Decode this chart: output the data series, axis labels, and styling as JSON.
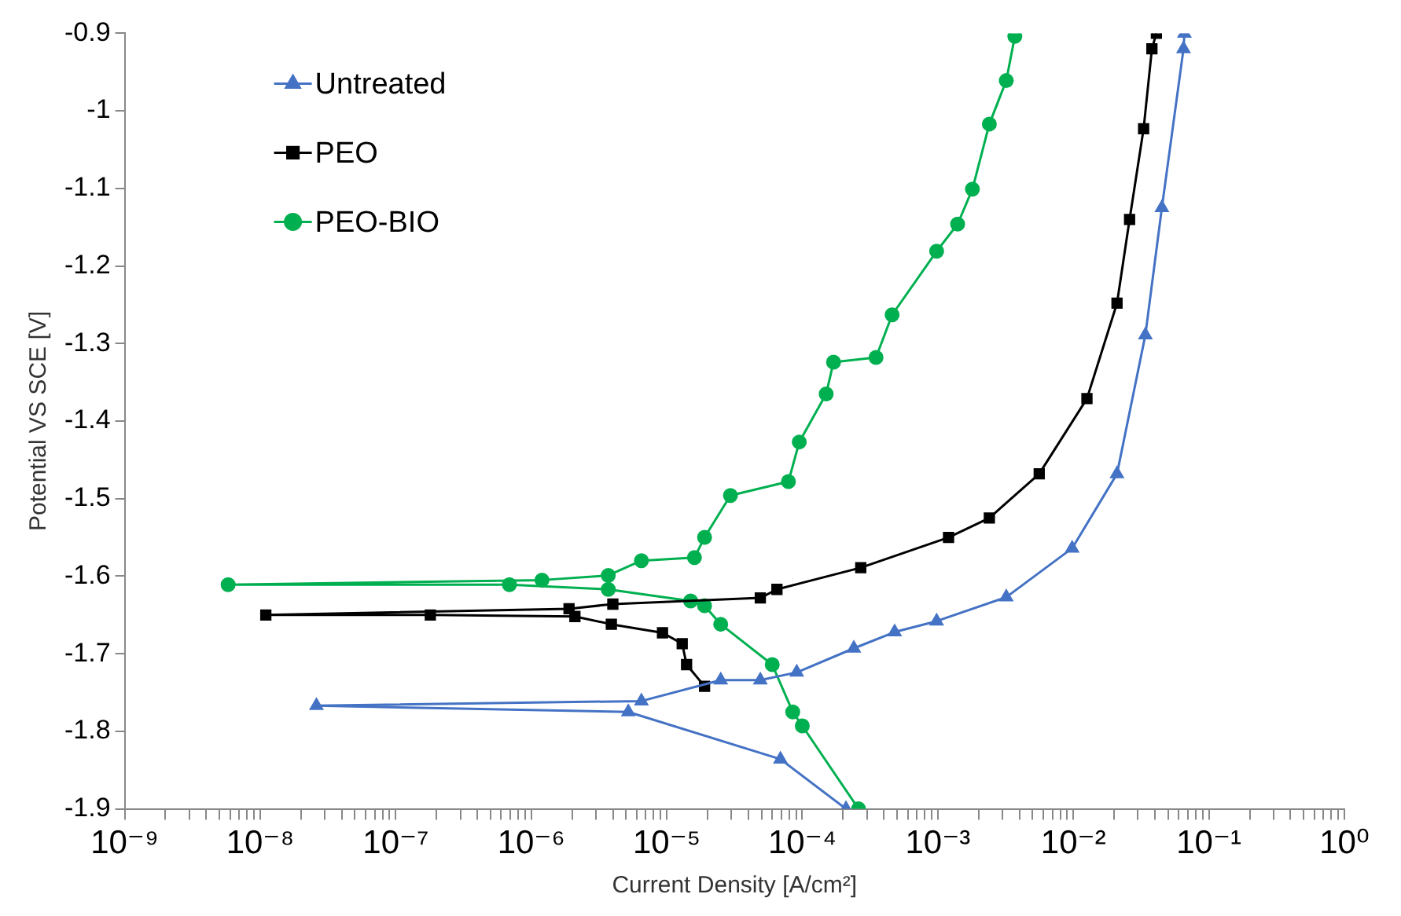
{
  "chart_data": {
    "type": "line",
    "xlabel": "Current Density [A/cm²]",
    "ylabel": "Potential VS SCE [V]",
    "log": "x",
    "grid": false,
    "legend": "top left",
    "line_style": "solid",
    "xlim": [
      1e-09,
      1
    ],
    "xticks": [
      {
        "value": 1e-09,
        "label": "10⁻⁹"
      },
      {
        "value": 2e-09,
        "label": null
      },
      {
        "value": 3e-09,
        "label": null
      },
      {
        "value": 4e-09,
        "label": null
      },
      {
        "value": 5e-09,
        "label": null
      },
      {
        "value": 6e-09,
        "label": null
      },
      {
        "value": 7e-09,
        "label": null
      },
      {
        "value": 8e-09,
        "label": null
      },
      {
        "value": 9e-09,
        "label": null
      },
      {
        "value": 1e-08,
        "label": "10⁻⁸"
      },
      {
        "value": 2e-08,
        "label": null
      },
      {
        "value": 3e-08,
        "label": null
      },
      {
        "value": 4e-08,
        "label": null
      },
      {
        "value": 5e-08,
        "label": null
      },
      {
        "value": 6e-08,
        "label": null
      },
      {
        "value": 7e-08,
        "label": null
      },
      {
        "value": 8e-08,
        "label": null
      },
      {
        "value": 9e-08,
        "label": null
      },
      {
        "value": 1e-07,
        "label": "10⁻⁷"
      },
      {
        "value": 2e-07,
        "label": null
      },
      {
        "value": 3e-07,
        "label": null
      },
      {
        "value": 4e-07,
        "label": null
      },
      {
        "value": 5e-07,
        "label": null
      },
      {
        "value": 6e-07,
        "label": null
      },
      {
        "value": 7e-07,
        "label": null
      },
      {
        "value": 8e-07,
        "label": null
      },
      {
        "value": 9e-07,
        "label": null
      },
      {
        "value": 1e-06,
        "label": "10⁻⁶"
      },
      {
        "value": 2e-06,
        "label": null
      },
      {
        "value": 3e-06,
        "label": null
      },
      {
        "value": 4e-06,
        "label": null
      },
      {
        "value": 5e-06,
        "label": null
      },
      {
        "value": 6e-06,
        "label": null
      },
      {
        "value": 7e-06,
        "label": null
      },
      {
        "value": 8e-06,
        "label": null
      },
      {
        "value": 9e-06,
        "label": null
      },
      {
        "value": 1e-05,
        "label": "10⁻⁵"
      },
      {
        "value": 2e-05,
        "label": null
      },
      {
        "value": 3e-05,
        "label": null
      },
      {
        "value": 4e-05,
        "label": null
      },
      {
        "value": 5e-05,
        "label": null
      },
      {
        "value": 6e-05,
        "label": null
      },
      {
        "value": 7e-05,
        "label": null
      },
      {
        "value": 8e-05,
        "label": null
      },
      {
        "value": 9e-05,
        "label": null
      },
      {
        "value": 0.0001,
        "label": "10⁻⁴"
      },
      {
        "value": 0.0002,
        "label": null
      },
      {
        "value": 0.0003,
        "label": null
      },
      {
        "value": 0.0004,
        "label": null
      },
      {
        "value": 0.0005,
        "label": null
      },
      {
        "value": 0.0006,
        "label": null
      },
      {
        "value": 0.0007,
        "label": null
      },
      {
        "value": 0.0008,
        "label": null
      },
      {
        "value": 0.0009,
        "label": null
      },
      {
        "value": 0.001,
        "label": "10⁻³"
      },
      {
        "value": 0.002,
        "label": null
      },
      {
        "value": 0.003,
        "label": null
      },
      {
        "value": 0.004,
        "label": null
      },
      {
        "value": 0.005,
        "label": null
      },
      {
        "value": 0.006,
        "label": null
      },
      {
        "value": 0.007,
        "label": null
      },
      {
        "value": 0.008,
        "label": null
      },
      {
        "value": 0.009,
        "label": null
      },
      {
        "value": 0.01,
        "label": "10⁻²"
      },
      {
        "value": 0.02,
        "label": null
      },
      {
        "value": 0.03,
        "label": null
      },
      {
        "value": 0.04,
        "label": null
      },
      {
        "value": 0.05,
        "label": null
      },
      {
        "value": 0.06,
        "label": null
      },
      {
        "value": 0.07,
        "label": null
      },
      {
        "value": 0.08,
        "label": null
      },
      {
        "value": 0.09,
        "label": null
      },
      {
        "value": 0.1,
        "label": "10⁻¹"
      },
      {
        "value": 0.2,
        "label": null
      },
      {
        "value": 0.3,
        "label": null
      },
      {
        "value": 0.4,
        "label": null
      },
      {
        "value": 0.5,
        "label": null
      },
      {
        "value": 0.6,
        "label": null
      },
      {
        "value": 0.7,
        "label": null
      },
      {
        "value": 0.8,
        "label": null
      },
      {
        "value": 0.9,
        "label": null
      },
      {
        "value": 1,
        "label": "10⁰"
      }
    ],
    "ylim": [
      -1.9,
      -0.9
    ],
    "yticks": [
      -1.9,
      -1.8,
      -1.7,
      -1.6,
      -1.5,
      -1.4,
      -1.3,
      -1.2,
      -1.1,
      -1,
      -0.9
    ],
    "series": [
      {
        "name": "Untreated",
        "color": "#4472c4",
        "marker": "triangle",
        "x": [
          0.00021,
          6.9e-05,
          5.2e-06,
          2.6e-08,
          6.5e-06,
          2.5e-05,
          4.9e-05,
          9.1e-05,
          0.00024,
          0.00048,
          0.00098,
          0.0032,
          0.0098,
          0.021,
          0.034,
          0.045,
          0.065,
          0.066
        ],
        "values": [
          -1.9,
          -1.836,
          -1.775,
          -1.767,
          -1.761,
          -1.734,
          -1.734,
          -1.724,
          -1.693,
          -1.672,
          -1.658,
          -1.627,
          -1.564,
          -1.468,
          -1.289,
          -1.125,
          -0.92,
          -0.9
        ]
      },
      {
        "name": "PEO",
        "color": "#000000",
        "marker": "square",
        "x": [
          1.9e-05,
          1.4e-05,
          1.3e-05,
          9.3e-06,
          3.9e-06,
          2.1e-06,
          1.8e-07,
          1.1e-08,
          1.9e-06,
          4e-06,
          4.9e-05,
          6.5e-05,
          0.00027,
          0.0012,
          0.0024,
          0.0056,
          0.0126,
          0.021,
          0.026,
          0.033,
          0.038,
          0.041
        ],
        "values": [
          -1.742,
          -1.714,
          -1.687,
          -1.673,
          -1.662,
          -1.652,
          -1.65,
          -1.65,
          -1.642,
          -1.636,
          -1.628,
          -1.617,
          -1.589,
          -1.55,
          -1.525,
          -1.468,
          -1.371,
          -1.248,
          -1.14,
          -1.023,
          -0.92,
          -0.9
        ]
      },
      {
        "name": "PEO-BIO",
        "color": "#00b050",
        "marker": "circle",
        "x": [
          0.00026,
          0.0001,
          8.5e-05,
          6e-05,
          2.5e-05,
          1.9e-05,
          1.5e-05,
          3.7e-06,
          6.9e-07,
          5.8e-09,
          1.2e-06,
          3.7e-06,
          6.5e-06,
          1.6e-05,
          1.9e-05,
          2.95e-05,
          7.9e-05,
          9.5e-05,
          0.00015,
          0.00017,
          0.00035,
          0.00046,
          0.00098,
          0.0014,
          0.0018,
          0.0024,
          0.0032,
          0.0037
        ],
        "values": [
          -1.9,
          -1.793,
          -1.775,
          -1.714,
          -1.662,
          -1.638,
          -1.632,
          -1.617,
          -1.611,
          -1.611,
          -1.605,
          -1.599,
          -1.58,
          -1.576,
          -1.55,
          -1.496,
          -1.478,
          -1.427,
          -1.365,
          -1.324,
          -1.318,
          -1.263,
          -1.181,
          -1.146,
          -1.101,
          -1.017,
          -0.961,
          -0.904
        ]
      }
    ]
  }
}
